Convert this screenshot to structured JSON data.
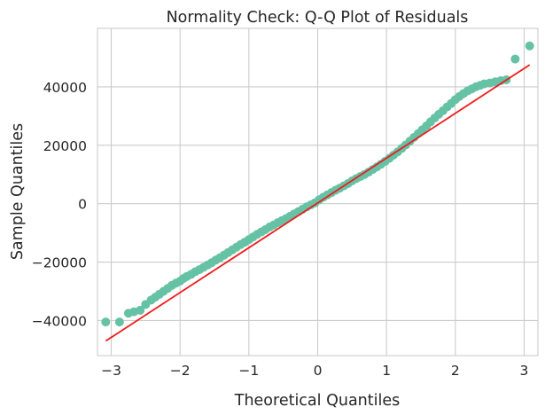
{
  "chart_data": {
    "type": "scatter",
    "title": "Normality Check: Q-Q Plot of Residuals",
    "xlabel": "Theoretical Quantiles",
    "ylabel": "Sample Quantiles",
    "xlim": [
      -3.2,
      3.2
    ],
    "ylim": [
      -52000,
      60000
    ],
    "xticks": [
      -3,
      -2,
      -1,
      0,
      1,
      2,
      3
    ],
    "xtick_labels": [
      "−3",
      "−2",
      "−1",
      "0",
      "1",
      "2",
      "3"
    ],
    "yticks": [
      -40000,
      -20000,
      0,
      20000,
      40000
    ],
    "ytick_labels": [
      "−40000",
      "−20000",
      "0",
      "20000",
      "40000"
    ],
    "grid": true,
    "marker_color": "#66c2a5",
    "line_color": "#ee1c1c",
    "reference_line": {
      "x": [
        -3.08,
        3.08
      ],
      "y": [
        -47000,
        47500
      ]
    },
    "points": {
      "x": [
        -3.08,
        -2.88,
        -2.75,
        -2.67,
        -2.58,
        -2.5,
        -2.42,
        -2.36,
        -2.3,
        -2.24,
        -2.18,
        -2.12,
        -2.06,
        -2.0,
        -1.95,
        -1.9,
        -1.84,
        -1.78,
        -1.72,
        -1.66,
        -1.6,
        -1.54,
        -1.48,
        -1.42,
        -1.36,
        -1.3,
        -1.24,
        -1.18,
        -1.12,
        -1.06,
        -1.0,
        -0.94,
        -0.88,
        -0.82,
        -0.76,
        -0.7,
        -0.64,
        -0.58,
        -0.52,
        -0.46,
        -0.4,
        -0.34,
        -0.28,
        -0.22,
        -0.16,
        -0.1,
        -0.04,
        0.02,
        0.08,
        0.14,
        0.2,
        0.26,
        0.32,
        0.38,
        0.44,
        0.5,
        0.56,
        0.62,
        0.68,
        0.74,
        0.8,
        0.86,
        0.92,
        0.98,
        1.04,
        1.1,
        1.16,
        1.22,
        1.28,
        1.34,
        1.4,
        1.46,
        1.52,
        1.58,
        1.64,
        1.7,
        1.76,
        1.82,
        1.88,
        1.94,
        2.0,
        2.06,
        2.12,
        2.18,
        2.24,
        2.3,
        2.36,
        2.42,
        2.5,
        2.58,
        2.66,
        2.74,
        2.87,
        3.08
      ],
      "y": [
        -40500,
        -40500,
        -37500,
        -37000,
        -36500,
        -34500,
        -33000,
        -32000,
        -31000,
        -30000,
        -29000,
        -28000,
        -27200,
        -26500,
        -25600,
        -24900,
        -24200,
        -23300,
        -22600,
        -21800,
        -21000,
        -20200,
        -19300,
        -18500,
        -17600,
        -16700,
        -15800,
        -14900,
        -14000,
        -13200,
        -12300,
        -11400,
        -10500,
        -9700,
        -8900,
        -8000,
        -7300,
        -6500,
        -5800,
        -5100,
        -4300,
        -3500,
        -2700,
        -1900,
        -1100,
        -400,
        300,
        1300,
        2200,
        3000,
        3800,
        4600,
        5300,
        6100,
        6900,
        7800,
        8600,
        9300,
        10000,
        10800,
        11700,
        12600,
        13500,
        14500,
        15500,
        16600,
        17700,
        18900,
        20100,
        21400,
        22700,
        24000,
        25300,
        26600,
        28000,
        29300,
        30600,
        31800,
        33100,
        34300,
        35600,
        36700,
        37700,
        38600,
        39300,
        40000,
        40500,
        41000,
        41300,
        41700,
        42100,
        42400,
        49500,
        54000
      ]
    }
  }
}
